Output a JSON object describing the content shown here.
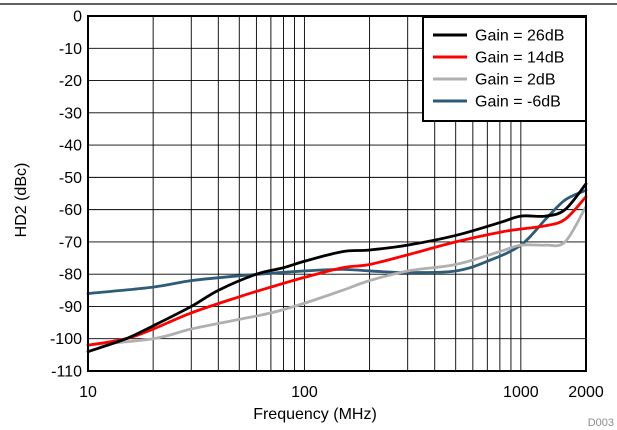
{
  "chart_data": {
    "type": "line",
    "title": "",
    "xlabel": "Frequency (MHz)",
    "ylabel": "HD2 (dBc)",
    "x_scale": "log",
    "xlim": [
      10,
      2000
    ],
    "ylim": [
      -110,
      0
    ],
    "grid": true,
    "legend_position": "top-right",
    "x_ticks": [
      10,
      100,
      1000,
      2000
    ],
    "x_tick_labels": [
      "10",
      "100",
      "1000",
      "2000"
    ],
    "y_ticks": [
      0,
      -10,
      -20,
      -30,
      -40,
      -50,
      -60,
      -70,
      -80,
      -90,
      -100,
      -110
    ],
    "y_tick_labels": [
      "0",
      "-10",
      "-20",
      "-30",
      "-40",
      "-50",
      "-60",
      "-70",
      "-80",
      "-90",
      "-100",
      "-110"
    ],
    "series": [
      {
        "name": "Gain = 26dB",
        "color": "#000000",
        "points": [
          [
            10,
            -104
          ],
          [
            15,
            -100
          ],
          [
            20,
            -96
          ],
          [
            30,
            -90
          ],
          [
            40,
            -85
          ],
          [
            60,
            -80
          ],
          [
            80,
            -78
          ],
          [
            100,
            -76
          ],
          [
            150,
            -73
          ],
          [
            200,
            -72.5
          ],
          [
            300,
            -71
          ],
          [
            500,
            -68
          ],
          [
            800,
            -64
          ],
          [
            1000,
            -62
          ],
          [
            1300,
            -62
          ],
          [
            1600,
            -60
          ],
          [
            2000,
            -52
          ]
        ]
      },
      {
        "name": "Gain = 14dB",
        "color": "#ff0000",
        "points": [
          [
            10,
            -102
          ],
          [
            15,
            -100
          ],
          [
            20,
            -97
          ],
          [
            30,
            -92
          ],
          [
            50,
            -87
          ],
          [
            70,
            -84
          ],
          [
            100,
            -81
          ],
          [
            150,
            -78
          ],
          [
            200,
            -77
          ],
          [
            300,
            -74
          ],
          [
            500,
            -70
          ],
          [
            800,
            -67
          ],
          [
            1000,
            -66
          ],
          [
            1300,
            -65
          ],
          [
            1600,
            -63
          ],
          [
            2000,
            -56
          ]
        ]
      },
      {
        "name": "Gain = 2dB",
        "color": "#b0b0b0",
        "points": [
          [
            10,
            -102
          ],
          [
            20,
            -100
          ],
          [
            30,
            -97
          ],
          [
            50,
            -94
          ],
          [
            70,
            -92
          ],
          [
            100,
            -89
          ],
          [
            150,
            -85
          ],
          [
            200,
            -82
          ],
          [
            300,
            -79
          ],
          [
            500,
            -77
          ],
          [
            800,
            -73
          ],
          [
            1000,
            -71
          ],
          [
            1300,
            -71
          ],
          [
            1600,
            -70
          ],
          [
            2000,
            -59
          ]
        ]
      },
      {
        "name": "Gain = -6dB",
        "color": "#2e5c78",
        "points": [
          [
            10,
            -86
          ],
          [
            20,
            -84
          ],
          [
            30,
            -82
          ],
          [
            50,
            -80.5
          ],
          [
            100,
            -79
          ],
          [
            150,
            -78.5
          ],
          [
            200,
            -79
          ],
          [
            300,
            -79.5
          ],
          [
            500,
            -79
          ],
          [
            700,
            -76
          ],
          [
            1000,
            -71
          ],
          [
            1300,
            -63
          ],
          [
            1600,
            -57
          ],
          [
            2000,
            -54
          ]
        ]
      }
    ],
    "footnote": "D003"
  }
}
